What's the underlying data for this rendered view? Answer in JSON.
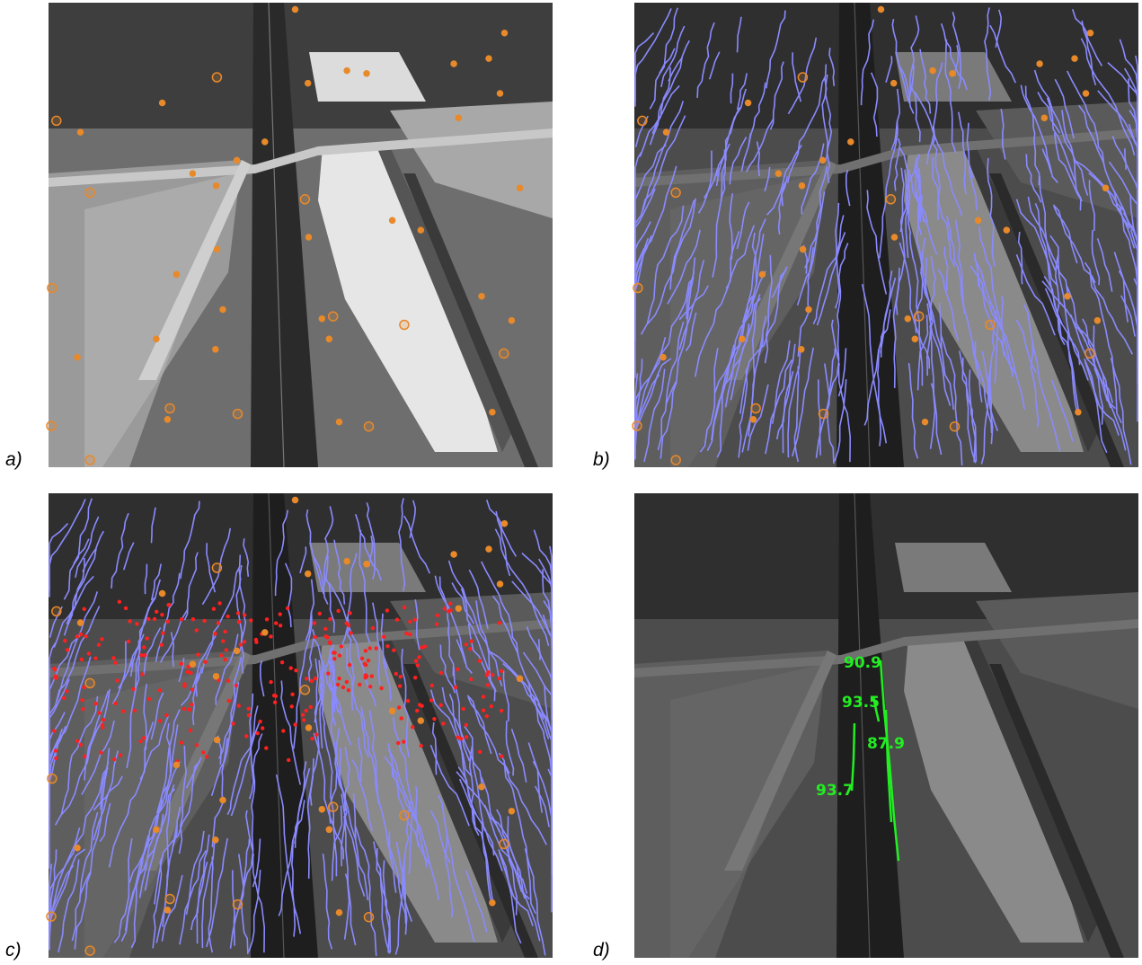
{
  "panels": [
    {
      "label": "a)"
    },
    {
      "label": "b)"
    },
    {
      "label": "c)"
    },
    {
      "label": "d)",
      "annotations": [
        90.9,
        93.5,
        87.9,
        93.7
      ]
    }
  ]
}
